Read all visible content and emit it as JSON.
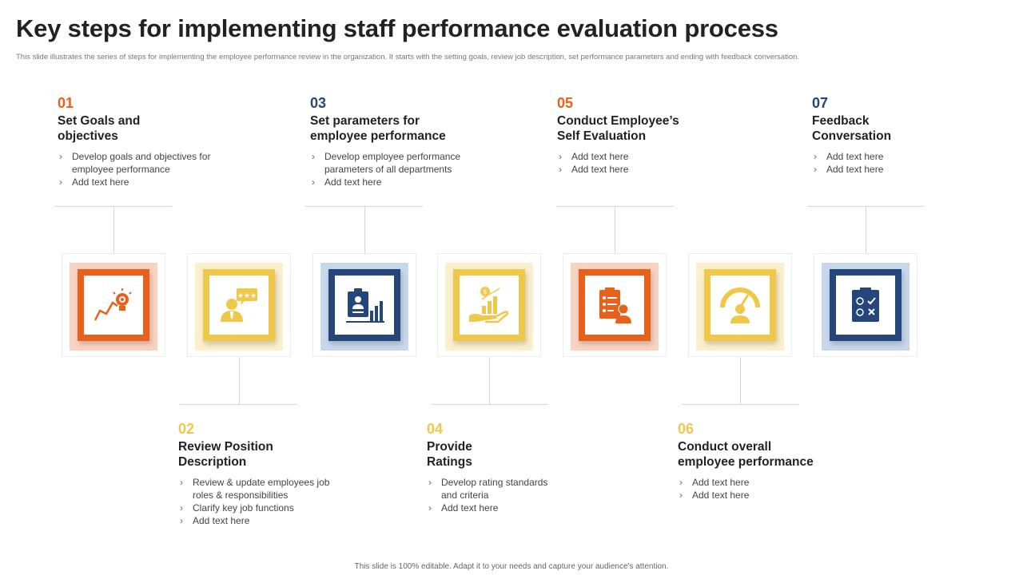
{
  "title": "Key steps for implementing staff performance evaluation process",
  "subtitle": "This slide illustrates the series of steps for implementing  the employee performance review in the organization. It starts with the setting goals, review job description, set performance parameters  and ending with feedback conversation.",
  "colors": {
    "orange": "#E8601A",
    "yellow": "#EFC84A",
    "navy": "#24467A",
    "orange_light": "#F9D3C2",
    "yellow_light": "#FBEFCC",
    "navy_light": "#C7D7EC"
  },
  "steps": [
    {
      "num": "01",
      "heading": "Set Goals and\n objectives",
      "bullets": [
        "Develop goals and objectives for employee performance",
        "Add text here"
      ],
      "icon": "growth-bulb-icon"
    },
    {
      "num": "02",
      "heading": "Review Position\nDescription",
      "bullets": [
        "Review  & update employees job roles & responsibilities",
        "Clarify key job functions",
        "Add text here"
      ],
      "icon": "review-rating-icon"
    },
    {
      "num": "03",
      "heading": "Set parameters for\nemployee performance",
      "bullets": [
        "Develop employee performance parameters of all departments",
        "Add text here"
      ],
      "icon": "profile-chart-icon"
    },
    {
      "num": "04",
      "heading": "Provide\nRatings",
      "bullets": [
        "Develop rating standards and criteria",
        "Add text here"
      ],
      "icon": "hand-coin-growth-icon"
    },
    {
      "num": "05",
      "heading": "Conduct Employee’s\nSelf Evaluation",
      "bullets": [
        "Add text here",
        "Add text here"
      ],
      "icon": "self-evaluation-clipboard-icon"
    },
    {
      "num": "06",
      "heading": "Conduct overall\nemployee performance",
      "bullets": [
        "Add text here",
        "Add text here"
      ],
      "icon": "performance-gauge-icon"
    },
    {
      "num": "07",
      "heading": "Feedback\nConversation",
      "bullets": [
        "Add text here",
        "Add text here"
      ],
      "icon": "feedback-clipboard-icon"
    }
  ],
  "footer": "This slide is 100% editable.  Adapt it to your needs and capture your audience's attention."
}
